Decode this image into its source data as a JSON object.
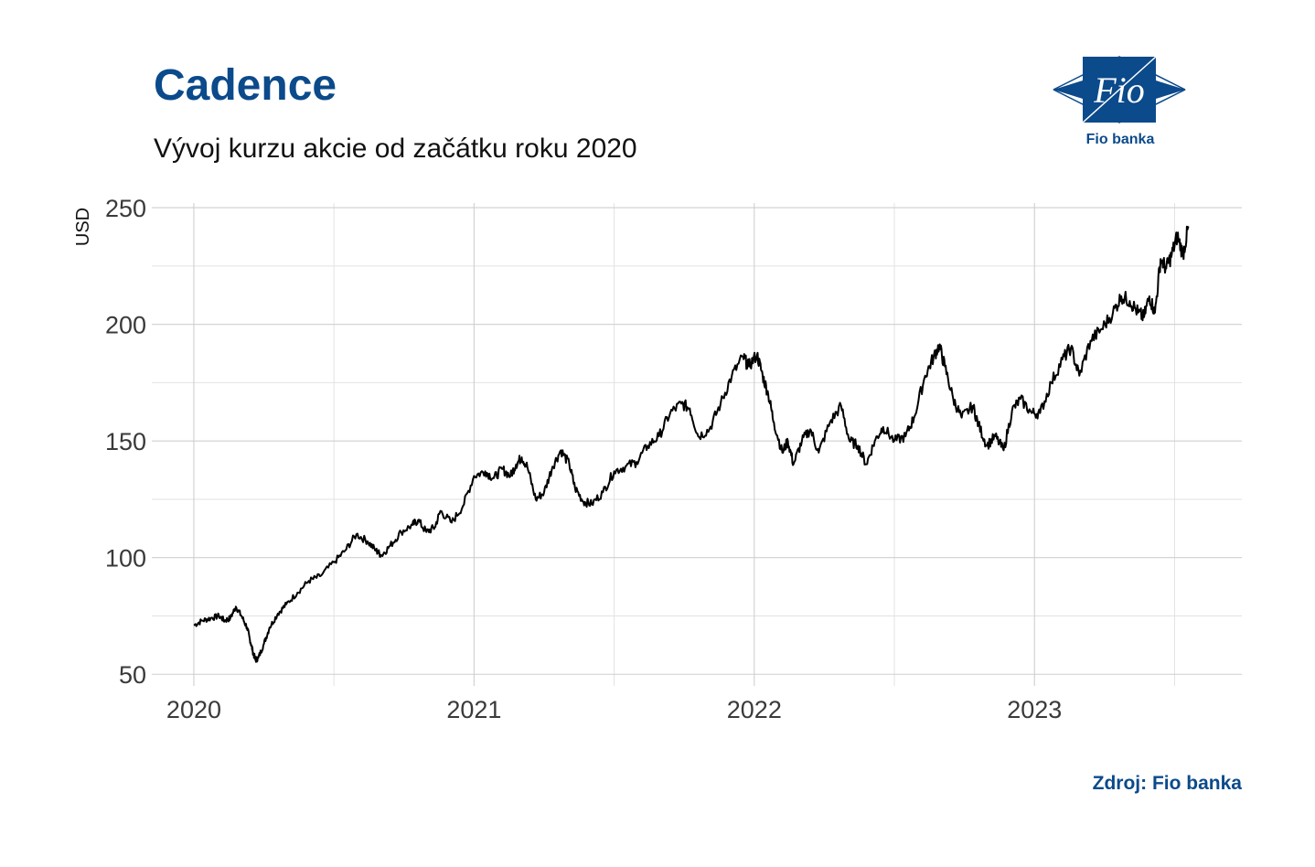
{
  "header": {
    "title": "Cadence",
    "subtitle": "Vývoj kurzu akcie od začátku roku 2020"
  },
  "logo": {
    "text": "Fio",
    "caption": "Fio banka",
    "color": "#0b4a8b"
  },
  "footer": {
    "source": "Zdroj: Fio banka"
  },
  "chart_data": {
    "type": "line",
    "ylabel": "USD",
    "xlabel": "",
    "ylim": [
      45,
      252
    ],
    "xlim": [
      2019.85,
      2023.74
    ],
    "yticks": [
      50,
      100,
      150,
      200,
      250
    ],
    "xticks": [
      {
        "value": 2020,
        "label": "2020"
      },
      {
        "value": 2021,
        "label": "2021"
      },
      {
        "value": 2022,
        "label": "2022"
      },
      {
        "value": 2023,
        "label": "2023"
      }
    ],
    "grid": true,
    "line_color": "#000000",
    "series": [
      {
        "x": [
          2020.0,
          2020.03,
          2020.06,
          2020.09,
          2020.11,
          2020.13,
          2020.15,
          2020.17,
          2020.19,
          2020.2,
          2020.21,
          2020.22,
          2020.23,
          2020.25,
          2020.27,
          2020.3,
          2020.33,
          2020.37,
          2020.41,
          2020.45,
          2020.5,
          2020.54,
          2020.58,
          2020.62,
          2020.65,
          2020.67,
          2020.7,
          2020.74,
          2020.78,
          2020.8,
          2020.83,
          2020.86,
          2020.88,
          2020.92,
          2020.96,
          2021.0,
          2021.04,
          2021.07,
          2021.1,
          2021.13,
          2021.15,
          2021.17,
          2021.19,
          2021.22,
          2021.25,
          2021.28,
          2021.31,
          2021.34,
          2021.36,
          2021.39,
          2021.42,
          2021.46,
          2021.5,
          2021.54,
          2021.58,
          2021.62,
          2021.66,
          2021.7,
          2021.74,
          2021.77,
          2021.8,
          2021.84,
          2021.88,
          2021.92,
          2021.96,
          2021.98,
          2022.01,
          2022.03,
          2022.05,
          2022.07,
          2022.1,
          2022.12,
          2022.14,
          2022.17,
          2022.2,
          2022.23,
          2022.27,
          2022.31,
          2022.34,
          2022.37,
          2022.4,
          2022.43,
          2022.46,
          2022.5,
          2022.54,
          2022.57,
          2022.61,
          2022.64,
          2022.66,
          2022.68,
          2022.71,
          2022.74,
          2022.78,
          2022.8,
          2022.83,
          2022.86,
          2022.89,
          2022.92,
          2022.95,
          2022.99,
          2023.02,
          2023.06,
          2023.1,
          2023.13,
          2023.16,
          2023.2,
          2023.24,
          2023.28,
          2023.31,
          2023.34,
          2023.37,
          2023.39,
          2023.41,
          2023.43,
          2023.45,
          2023.47,
          2023.49,
          2023.51,
          2023.53,
          2023.55
        ],
        "values": [
          71,
          73,
          74,
          75,
          73,
          74,
          79,
          75,
          70,
          65,
          60,
          56,
          57,
          63,
          70,
          76,
          80,
          85,
          90,
          92,
          98,
          103,
          110,
          107,
          103,
          101,
          105,
          111,
          114,
          116,
          111,
          113,
          120,
          115,
          122,
          135,
          137,
          134,
          138,
          135,
          140,
          143,
          139,
          125,
          128,
          139,
          146,
          140,
          130,
          124,
          123,
          128,
          137,
          139,
          141,
          148,
          152,
          162,
          166,
          164,
          152,
          155,
          166,
          178,
          186,
          182,
          187,
          178,
          170,
          158,
          145,
          150,
          140,
          150,
          155,
          145,
          158,
          165,
          150,
          148,
          140,
          150,
          156,
          150,
          152,
          160,
          178,
          186,
          191,
          182,
          168,
          160,
          165,
          157,
          148,
          152,
          146,
          163,
          168,
          162,
          162,
          175,
          185,
          190,
          178,
          193,
          198,
          205,
          212,
          210,
          205,
          203,
          212,
          205,
          228,
          224,
          230,
          238,
          230,
          242
        ]
      }
    ]
  }
}
